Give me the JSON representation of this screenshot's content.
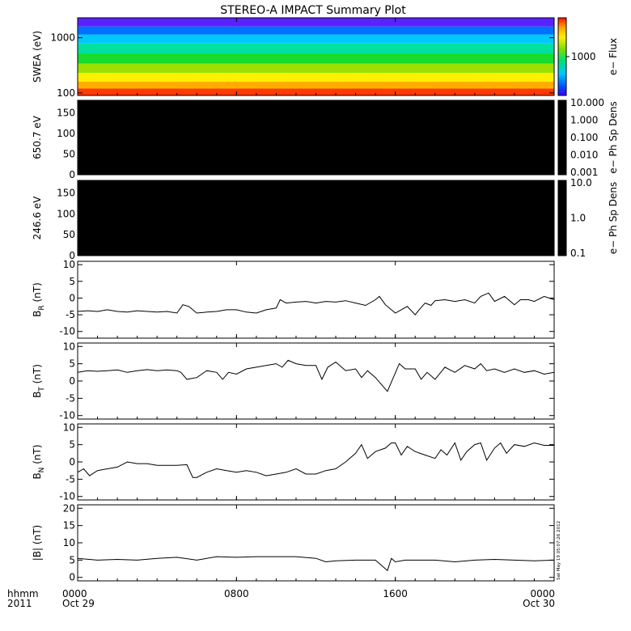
{
  "title": "STEREO-A IMPACT Summary Plot",
  "footer": {
    "hhmm_label": "hhmm",
    "year_label": "2011",
    "ticks": [
      {
        "time": "0000",
        "date": "Oct 29",
        "hour": 0
      },
      {
        "time": "0800",
        "date": "",
        "hour": 8
      },
      {
        "time": "1600",
        "date": "",
        "hour": 16
      },
      {
        "time": "0000",
        "date": "Oct 30",
        "hour": 24
      }
    ]
  },
  "timestamp": "Sat May 19 05:07:26 2012",
  "colors": {
    "axis": "#000000",
    "trace": "#000000",
    "background": "#ffffff",
    "empty_panel": "#000000"
  },
  "chart_data": [
    {
      "type": "heatmap",
      "panel": "swea",
      "ylabel": "SWEA (eV)",
      "yscale": "log",
      "ylim": [
        90,
        2300
      ],
      "yticks": [
        {
          "value": 100,
          "label": "100"
        },
        {
          "value": 1000,
          "label": "1000"
        }
      ],
      "colorbar": {
        "label": "e− Flux",
        "scale": "log",
        "range": [
          100,
          10000
        ],
        "ticks": [
          {
            "value": 1000,
            "label": "1000"
          }
        ],
        "colormap": "rainbow"
      },
      "xlim": [
        0,
        24
      ],
      "bands": [
        {
          "energy_range": [
            90,
            120
          ],
          "color": "#ff3a00"
        },
        {
          "energy_range": [
            120,
            160
          ],
          "color": "#ffae00"
        },
        {
          "energy_range": [
            160,
            230
          ],
          "color": "#fff000"
        },
        {
          "energy_range": [
            230,
            340
          ],
          "color": "#9be000"
        },
        {
          "energy_range": [
            340,
            520
          ],
          "color": "#16dc2e"
        },
        {
          "energy_range": [
            520,
            800
          ],
          "color": "#00e0a0"
        },
        {
          "energy_range": [
            800,
            1150
          ],
          "color": "#00c8ff"
        },
        {
          "energy_range": [
            1150,
            1600
          ],
          "color": "#0070ff"
        },
        {
          "energy_range": [
            1600,
            2300
          ],
          "color": "#5a22ff"
        }
      ]
    },
    {
      "type": "heatmap",
      "panel": "pad_650",
      "ylabel": "650.7 eV",
      "ylim": [
        0,
        180
      ],
      "yticks": [
        0,
        50,
        100,
        150
      ],
      "colorbar": {
        "label": "e− Ph Sp Dens",
        "scale": "log",
        "range": [
          0.001,
          10
        ],
        "tick_labels": [
          "10.000",
          "1.000",
          "0.100",
          "0.010",
          "0.001"
        ]
      },
      "xlim": [
        0,
        24
      ],
      "fill": "#000000"
    },
    {
      "type": "heatmap",
      "panel": "pad_246",
      "ylabel": "246.6 eV",
      "ylim": [
        0,
        180
      ],
      "yticks": [
        0,
        50,
        100,
        150
      ],
      "colorbar": {
        "label": "e− Ph Sp Dens",
        "scale": "log",
        "range": [
          0.1,
          10
        ],
        "tick_labels": [
          "10.0",
          "1.0",
          "0.1"
        ]
      },
      "xlim": [
        0,
        24
      ],
      "fill": "#000000"
    },
    {
      "type": "line",
      "panel": "br",
      "ylabel": "B",
      "ylabel_sub": "R",
      "ylabel_unit": "(nT)",
      "ylim": [
        -12,
        11
      ],
      "yticks": [
        -10,
        -5,
        0,
        5,
        10
      ],
      "x": [
        0,
        0.5,
        1,
        1.5,
        2,
        2.5,
        3,
        3.5,
        4,
        4.5,
        5,
        5.3,
        5.6,
        6,
        6.5,
        7,
        7.5,
        8,
        8.5,
        9,
        9.5,
        10,
        10.2,
        10.5,
        11,
        11.5,
        12,
        12.5,
        13,
        13.5,
        14,
        14.5,
        15,
        15.2,
        15.5,
        15.8,
        16,
        16.3,
        16.6,
        17,
        17.2,
        17.5,
        17.8,
        18,
        18.5,
        19,
        19.5,
        20,
        20.3,
        20.7,
        21,
        21.5,
        22,
        22.3,
        22.7,
        23,
        23.5,
        24
      ],
      "values": [
        -4,
        -3.8,
        -4,
        -3.5,
        -4,
        -4.2,
        -3.8,
        -4,
        -4.2,
        -4,
        -4.5,
        -2,
        -2.5,
        -4.5,
        -4.2,
        -4,
        -3.5,
        -3.5,
        -4.2,
        -4.5,
        -3.5,
        -3,
        -0.5,
        -1.5,
        -1.2,
        -1,
        -1.5,
        -1,
        -1.2,
        -0.8,
        -1.5,
        -2.2,
        -0.5,
        0.5,
        -2,
        -3.5,
        -4.5,
        -3.5,
        -2.5,
        -5,
        -3.5,
        -1.5,
        -2.2,
        -0.8,
        -0.5,
        -1,
        -0.5,
        -1.5,
        0.5,
        1.5,
        -1,
        0.5,
        -2,
        -0.5,
        -0.5,
        -1,
        0.5,
        -0.5
      ]
    },
    {
      "type": "line",
      "panel": "bt",
      "ylabel": "B",
      "ylabel_sub": "T",
      "ylabel_unit": "(nT)",
      "ylim": [
        -11,
        11
      ],
      "yticks": [
        -10,
        -5,
        0,
        5,
        10
      ],
      "x": [
        0,
        0.5,
        1,
        1.5,
        2,
        2.5,
        3,
        3.5,
        4,
        4.5,
        5,
        5.2,
        5.5,
        6,
        6.5,
        7,
        7.3,
        7.6,
        8,
        8.5,
        9,
        9.5,
        10,
        10.3,
        10.6,
        11,
        11.5,
        12,
        12.3,
        12.6,
        13,
        13.5,
        14,
        14.3,
        14.6,
        15,
        15.3,
        15.6,
        15.9,
        16.2,
        16.5,
        17,
        17.3,
        17.6,
        18,
        18.5,
        19,
        19.5,
        20,
        20.3,
        20.6,
        21,
        21.5,
        22,
        22.5,
        23,
        23.5,
        24
      ],
      "values": [
        2.5,
        3,
        2.8,
        3,
        3.2,
        2.5,
        3,
        3.3,
        3,
        3.2,
        3,
        2.5,
        0.5,
        1,
        3,
        2.5,
        0.5,
        2.5,
        2,
        3.5,
        4,
        4.5,
        5,
        4,
        6,
        5,
        4.5,
        4.5,
        0.5,
        4,
        5.5,
        3,
        3.5,
        1,
        3,
        1,
        -1,
        -3,
        1,
        5,
        3.5,
        3.5,
        0.5,
        2.5,
        0.5,
        4,
        2.5,
        4.5,
        3.5,
        5,
        3,
        3.5,
        2.5,
        3.5,
        2.5,
        3,
        2,
        2.5
      ]
    },
    {
      "type": "line",
      "panel": "bn",
      "ylabel": "B",
      "ylabel_sub": "N",
      "ylabel_unit": "(nT)",
      "ylim": [
        -11,
        11
      ],
      "yticks": [
        -10,
        -5,
        0,
        5,
        10
      ],
      "x": [
        0,
        0.3,
        0.6,
        1,
        1.5,
        2,
        2.5,
        3,
        3.5,
        4,
        4.5,
        5,
        5.5,
        5.8,
        6,
        6.5,
        7,
        7.5,
        8,
        8.5,
        9,
        9.5,
        10,
        10.5,
        11,
        11.5,
        12,
        12.5,
        13,
        13.5,
        14,
        14.3,
        14.6,
        15,
        15.5,
        15.8,
        16,
        16.3,
        16.6,
        17,
        17.5,
        18,
        18.3,
        18.6,
        19,
        19.3,
        19.6,
        20,
        20.3,
        20.6,
        21,
        21.3,
        21.6,
        22,
        22.5,
        23,
        23.5,
        24
      ],
      "values": [
        -3,
        -2,
        -4,
        -2.5,
        -2,
        -1.5,
        0,
        -0.5,
        -0.5,
        -1,
        -1,
        -1,
        -0.8,
        -4.5,
        -4.5,
        -3,
        -2,
        -2.5,
        -3,
        -2.5,
        -3,
        -4,
        -3.5,
        -3,
        -2,
        -3.5,
        -3.5,
        -2.5,
        -2,
        0,
        2.5,
        5,
        1,
        3,
        4,
        5.5,
        5.5,
        2,
        4.5,
        3,
        2,
        1,
        3.5,
        2,
        5.5,
        0.5,
        3,
        5,
        5.5,
        0.5,
        4,
        5.5,
        2.5,
        5,
        4.5,
        5.5,
        4.8,
        4.8
      ]
    },
    {
      "type": "line",
      "panel": "bmag",
      "ylabel": "|B|",
      "ylabel_unit": "(nT)",
      "ylim": [
        -1,
        21
      ],
      "yticks": [
        0,
        5,
        10,
        15,
        20
      ],
      "x": [
        0,
        1,
        2,
        3,
        4,
        5,
        6,
        7,
        8,
        9,
        10,
        11,
        12,
        12.5,
        13,
        14,
        15,
        15.6,
        15.8,
        16,
        16.5,
        17,
        18,
        19,
        20,
        21,
        22,
        23,
        24
      ],
      "values": [
        5.5,
        5,
        5.2,
        5,
        5.5,
        5.8,
        5,
        6,
        5.8,
        6,
        6,
        6,
        5.5,
        4.5,
        4.8,
        5,
        5,
        2,
        5.5,
        4.5,
        5,
        5,
        5,
        4.5,
        5,
        5.2,
        5,
        4.8,
        5
      ]
    }
  ]
}
